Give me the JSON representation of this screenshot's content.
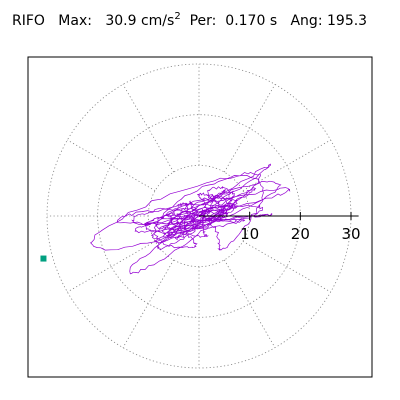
{
  "header": {
    "station": "RIFO",
    "max_label": "Max:",
    "max_value": "30.9",
    "max_unit": "cm/s",
    "max_unit_exponent": "2",
    "per_label": "Per:",
    "per_value": "0.170 s",
    "ang_label": "Ang:",
    "ang_value": "195.3"
  },
  "chart_data": {
    "type": "polar-orbit",
    "title": "RIFO  Max: 30.9 cm/s2  Per: 0.170 s  Ang: 195.3",
    "radial_ticks": [
      10,
      20,
      30
    ],
    "radial_tick_labels": [
      "10",
      "20",
      "30"
    ],
    "rmax": 30,
    "spoke_angles_deg": [
      0,
      30,
      60,
      90,
      120,
      150,
      180,
      210,
      240,
      270,
      300,
      330
    ],
    "grid": true,
    "max_amplitude": 30.9,
    "max_direction_deg": 195.3,
    "orbit_dominant_direction_deg": 20,
    "orbit_semi_axes": [
      23,
      8
    ],
    "colors": {
      "orbit": "#9400d3",
      "marker": "#00a080",
      "grid": "#808080",
      "axis": "#000000",
      "frame": "#000000"
    }
  }
}
